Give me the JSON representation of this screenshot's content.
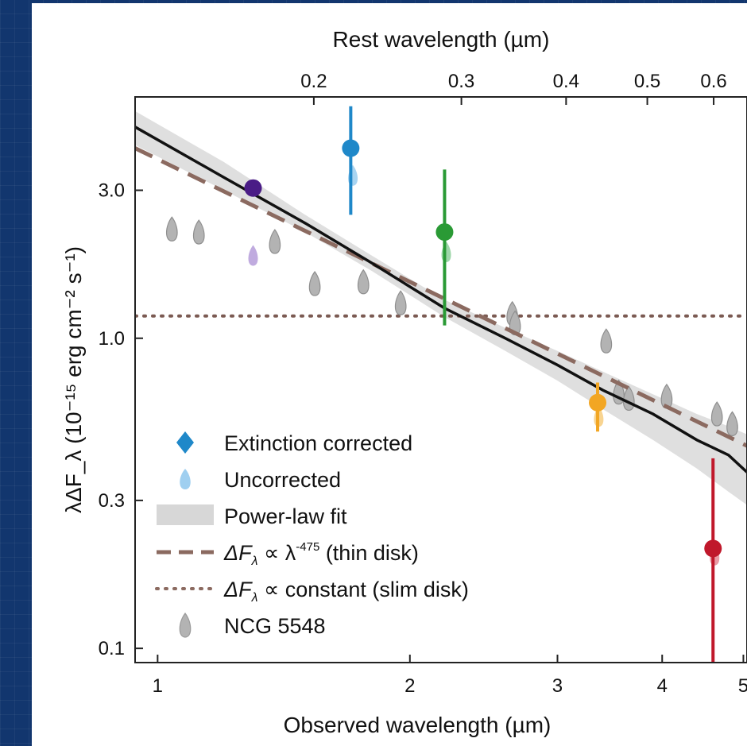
{
  "chart_data": {
    "type": "scatter",
    "top_xlabel": "Rest wavelength (µm)",
    "xlabel": "Observed wavelength (µm)",
    "ylabel": "λΔF_λ (10⁻¹⁵ erg cm⁻² s⁻¹)",
    "xscale": "log",
    "yscale": "log",
    "xlim": [
      0.94,
      5.05
    ],
    "ylim": [
      0.09,
      6.0
    ],
    "x_ticks": [
      {
        "value": 1,
        "label": "1"
      },
      {
        "value": 2,
        "label": "2"
      },
      {
        "value": 3,
        "label": "3"
      },
      {
        "value": 4,
        "label": "4"
      },
      {
        "value": 5,
        "label": "5"
      }
    ],
    "top_ticks": [
      {
        "value": 0.2,
        "label": "0.2"
      },
      {
        "value": 0.3,
        "label": "0.3"
      },
      {
        "value": 0.4,
        "label": "0.4"
      },
      {
        "value": 0.5,
        "label": "0.5"
      },
      {
        "value": 0.6,
        "label": "0.6"
      }
    ],
    "rest_to_observed_factor": 7.68,
    "y_ticks": [
      {
        "value": 0.1,
        "label": "0.1"
      },
      {
        "value": 0.3,
        "label": "0.3"
      },
      {
        "value": 1.0,
        "label": "1.0"
      },
      {
        "value": 3.0,
        "label": "3.0"
      }
    ],
    "extinction_corrected": [
      {
        "x": 1.3,
        "y": 3.05,
        "yerr_low": 0.0,
        "yerr_high": 0.0,
        "color": "#4a1c86"
      },
      {
        "x": 1.7,
        "y": 4.1,
        "yerr_low": 1.6,
        "yerr_high": 1.5,
        "color": "#1f88c9"
      },
      {
        "x": 2.2,
        "y": 2.2,
        "yerr_low": 1.1,
        "yerr_high": 1.3,
        "color": "#2a9a35"
      },
      {
        "x": 3.35,
        "y": 0.62,
        "yerr_low": 0.12,
        "yerr_high": 0.1,
        "color": "#f2a623"
      },
      {
        "x": 4.6,
        "y": 0.21,
        "yerr_low": 0.12,
        "yerr_high": 0.2,
        "color": "#c0182b"
      }
    ],
    "uncorrected": [
      {
        "x": 1.3,
        "y": 1.85,
        "color": "#b9a2dc"
      },
      {
        "x": 1.71,
        "y": 3.35,
        "color": "#9fcff0"
      },
      {
        "x": 2.21,
        "y": 1.9,
        "color": "#93d2a0"
      },
      {
        "x": 3.36,
        "y": 0.56,
        "color": "#f7cf85"
      },
      {
        "x": 4.62,
        "y": 0.2,
        "color": "#e7909b"
      }
    ],
    "ngc5548": [
      {
        "x": 1.04,
        "y": 2.25
      },
      {
        "x": 1.12,
        "y": 2.2
      },
      {
        "x": 1.38,
        "y": 2.05
      },
      {
        "x": 1.54,
        "y": 1.5
      },
      {
        "x": 1.76,
        "y": 1.52
      },
      {
        "x": 1.95,
        "y": 1.3
      },
      {
        "x": 2.65,
        "y": 1.2
      },
      {
        "x": 2.67,
        "y": 1.12
      },
      {
        "x": 3.43,
        "y": 0.98
      },
      {
        "x": 3.55,
        "y": 0.67
      },
      {
        "x": 3.65,
        "y": 0.64
      },
      {
        "x": 4.05,
        "y": 0.65
      },
      {
        "x": 4.65,
        "y": 0.57
      },
      {
        "x": 4.85,
        "y": 0.53
      }
    ],
    "power_law_fit": {
      "x": [
        0.94,
        1.2,
        1.5,
        1.8,
        2.2,
        2.6,
        3.0,
        3.4,
        3.9,
        4.4,
        4.8,
        5.05
      ],
      "y": [
        4.8,
        3.3,
        2.35,
        1.75,
        1.25,
        1.0,
        0.82,
        0.68,
        0.57,
        0.47,
        0.42,
        0.37
      ],
      "band_low": [
        4.2,
        3.0,
        2.2,
        1.65,
        1.17,
        0.91,
        0.73,
        0.59,
        0.47,
        0.38,
        0.32,
        0.29
      ],
      "band_high": [
        5.4,
        3.7,
        2.5,
        1.85,
        1.33,
        1.08,
        0.91,
        0.78,
        0.66,
        0.57,
        0.52,
        0.49
      ]
    },
    "thin_disk": {
      "x": [
        0.94,
        5.05
      ],
      "y": [
        4.1,
        0.45
      ]
    },
    "slim_disk": {
      "x": [
        0.94,
        5.05
      ],
      "y": [
        1.18,
        1.18
      ]
    },
    "legend": [
      {
        "label": "Extinction corrected",
        "marker": "diamond-drop",
        "color": "#1f88c9"
      },
      {
        "label": "Uncorrected",
        "marker": "drop",
        "color": "#9fcff0"
      },
      {
        "label": "Power-law fit",
        "marker": "band",
        "color": "#d7d7d7"
      },
      {
        "label_prefix": "ΔF",
        "label_sub": "λ",
        "label_mid": " ∝ λ",
        "label_sup": "-475",
        "label_suffix": " (thin disk)",
        "marker": "dashed",
        "color": "#8b6a60"
      },
      {
        "label_prefix": "ΔF",
        "label_sub": "λ",
        "label_mid": " ∝ constant (slim disk)",
        "marker": "dotted",
        "color": "#8b6a60"
      },
      {
        "label": "NCG 5548",
        "marker": "grey-drop",
        "color": "#9a9a9a"
      }
    ],
    "grid": false,
    "legend_position": "bottom-left"
  }
}
